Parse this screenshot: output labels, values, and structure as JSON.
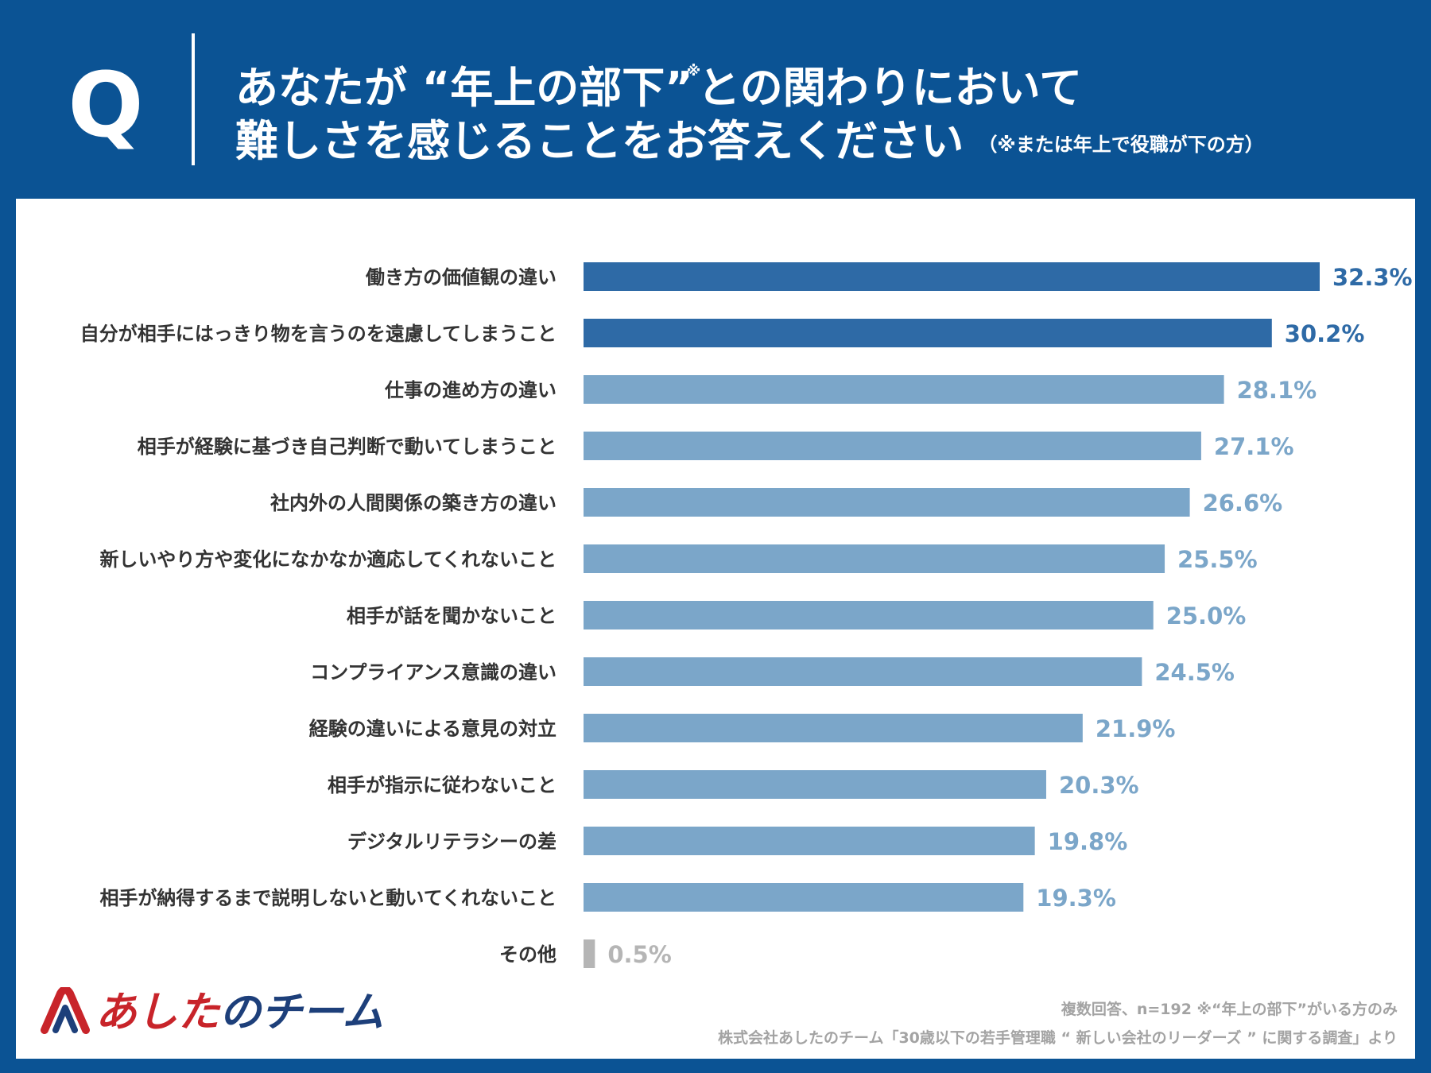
{
  "header": {
    "q_letter": "Q",
    "title_line1_a": "あなたが “年上の部下”",
    "title_mark": "※",
    "title_line1_b": "との関わりにおいて",
    "title_line2": "難しさを感じることをお答えください",
    "title_note": "（※または年上で役職が下の方）"
  },
  "colors": {
    "background": "#0b5394",
    "top_bar": "#2e6aa6",
    "bar": "#7ba6c9",
    "other_bar": "#b5b5b5",
    "top_label": "#2e6aa6",
    "bar_label": "#7ba6c9",
    "other_label": "#b5b5b5"
  },
  "chart_data": {
    "type": "bar",
    "orientation": "horizontal",
    "categories": [
      "働き方の価値観の違い",
      "自分が相手にはっきり物を言うのを遠慮してしまうこと",
      "仕事の進め方の違い",
      "相手が経験に基づき自己判断で動いてしまうこと",
      "社内外の人間関係の築き方の違い",
      "新しいやり方や変化になかなか適応してくれないこと",
      "相手が話を聞かないこと",
      "コンプライアンス意識の違い",
      "経験の違いによる意見の対立",
      "相手が指示に従わないこと",
      "デジタルリテラシーの差",
      "相手が納得するまで説明しないと動いてくれないこと",
      "その他"
    ],
    "values": [
      32.3,
      30.2,
      28.1,
      27.1,
      26.6,
      25.5,
      25.0,
      24.5,
      21.9,
      20.3,
      19.8,
      19.3,
      0.5
    ],
    "value_labels": [
      "32.3%",
      "30.2%",
      "28.1%",
      "27.1%",
      "26.6%",
      "25.5%",
      "25.0%",
      "24.5%",
      "21.9%",
      "20.3%",
      "19.8%",
      "19.3%",
      "0.5%"
    ],
    "highlight_top_n": 2,
    "xlim": [
      0,
      32.3
    ],
    "unit": "%",
    "grid": false,
    "legend": "none"
  },
  "footer": {
    "logo_text_a": "あした",
    "logo_text_b": "の",
    "logo_text_c": "チーム",
    "note1": "複数回答、n=192 ※“年上の部下”がいる方のみ",
    "note2": "株式会社あしたのチーム「30歳以下の若手管理職 “ 新しい会社のリーダーズ ” に関する調査」より"
  }
}
